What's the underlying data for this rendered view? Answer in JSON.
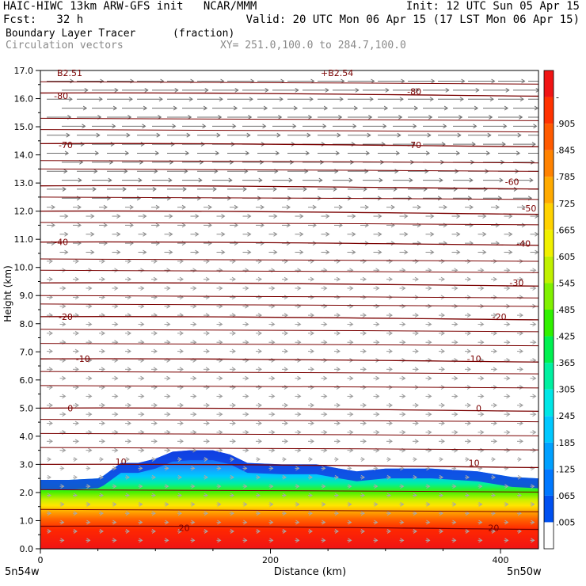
{
  "header": {
    "line1_left": "HAIC-HIWC 13km ARW-GFS init   NCAR/MMM",
    "line1_right": "Init: 12 UTC Sun 05 Apr 15",
    "line2_left": "Fcst:   32 h",
    "line2_right": "Valid: 20 UTC Mon 06 Apr 15 (17 LST Mon 06 Apr 15)",
    "field_name": "Boundary Layer Tracer",
    "field_units": "(fraction)",
    "overlay_name": "Circulation vectors",
    "xy_range": "XY= 251.0,100.0 to 284.7,100.0"
  },
  "chart_data": {
    "type": "heatmap",
    "title": "Boundary Layer Tracer",
    "units": "(fraction)",
    "xlabel": "Distance (km)",
    "ylabel": "Height (km)",
    "xlim": [
      0,
      433
    ],
    "ylim": [
      0,
      17
    ],
    "x_ticks": [
      0,
      200,
      400
    ],
    "y_ticks": [
      "0.0",
      "1.0",
      "2.0",
      "3.0",
      "4.0",
      "5.0",
      "6.0",
      "7.0",
      "8.0",
      "9.0",
      "10.0",
      "11.0",
      "12.0",
      "13.0",
      "14.0",
      "15.0",
      "16.0",
      "17.0"
    ],
    "x_endpoint_labels": {
      "left": "5n54w",
      "right": "5n50w"
    },
    "top_marks": [
      "B2.51",
      "+B2.54"
    ],
    "colorbar": {
      "labels": [
        ".005",
        ".065",
        ".125",
        ".185",
        ".245",
        ".305",
        ".365",
        ".425",
        ".485",
        ".545",
        ".605",
        ".665",
        ".725",
        ".785",
        ".845",
        ".905",
        "-"
      ],
      "colors": [
        "#ffffff",
        "#0050f0",
        "#0078ff",
        "#00a0ff",
        "#00c8ff",
        "#00e6e6",
        "#00f0a0",
        "#00f050",
        "#30f000",
        "#80f000",
        "#c0f000",
        "#f0f000",
        "#ffd200",
        "#ffaa00",
        "#ff8200",
        "#ff5a00",
        "#ff3200",
        "#f01414"
      ]
    },
    "tracer_profile": {
      "x": [
        0,
        25,
        50,
        55,
        60,
        70,
        85,
        100,
        115,
        130,
        150,
        165,
        180,
        210,
        240,
        260,
        275,
        300,
        340,
        380,
        410,
        433
      ],
      "top": [
        2.45,
        2.45,
        2.5,
        2.6,
        2.75,
        3.05,
        3.05,
        3.2,
        3.45,
        3.5,
        3.5,
        3.35,
        3.05,
        3.0,
        3.0,
        2.85,
        2.75,
        2.85,
        2.85,
        2.75,
        2.55,
        2.5
      ]
    },
    "contours": [
      {
        "label": "-80",
        "h": 16.2
      },
      {
        "label": "-70",
        "h": 14.4
      },
      {
        "label": "-60",
        "h": 12.9
      },
      {
        "label": "-50",
        "h": 12.0
      },
      {
        "label": "-40",
        "h": 10.9
      },
      {
        "label": "-30",
        "h": 9.45
      },
      {
        "label": "-20",
        "h": 8.25
      },
      {
        "label": "-10",
        "h": 6.75
      },
      {
        "label": "0",
        "h": 5.0
      },
      {
        "label": "10",
        "h": 3.0
      },
      {
        "label": "20",
        "h": 0.8
      }
    ],
    "contour_labels": [
      {
        "text": "-80",
        "x": 18,
        "h": 16.1
      },
      {
        "text": "-80",
        "x": 325,
        "h": 16.25
      },
      {
        "text": "-70",
        "x": 22,
        "h": 14.35
      },
      {
        "text": "-70",
        "x": 325,
        "h": 14.35
      },
      {
        "text": "-60",
        "x": 410,
        "h": 13.05
      },
      {
        "text": "-50",
        "x": 425,
        "h": 12.1
      },
      {
        "text": "-40",
        "x": 18,
        "h": 10.9
      },
      {
        "text": "-40",
        "x": 420,
        "h": 10.85
      },
      {
        "text": "-30",
        "x": 414,
        "h": 9.45
      },
      {
        "text": "-20",
        "x": 22,
        "h": 8.25
      },
      {
        "text": "-20",
        "x": 399,
        "h": 8.25
      },
      {
        "text": "-10",
        "x": 37,
        "h": 6.75
      },
      {
        "text": "-10",
        "x": 377,
        "h": 6.75
      },
      {
        "text": "0",
        "x": 26,
        "h": 5.0
      },
      {
        "text": "0",
        "x": 381,
        "h": 5.0
      },
      {
        "text": "10",
        "x": 70,
        "h": 3.1
      },
      {
        "text": "10",
        "x": 377,
        "h": 3.05
      },
      {
        "text": "20",
        "x": 125,
        "h": 0.75
      },
      {
        "text": "20",
        "x": 394,
        "h": 0.75
      }
    ]
  }
}
